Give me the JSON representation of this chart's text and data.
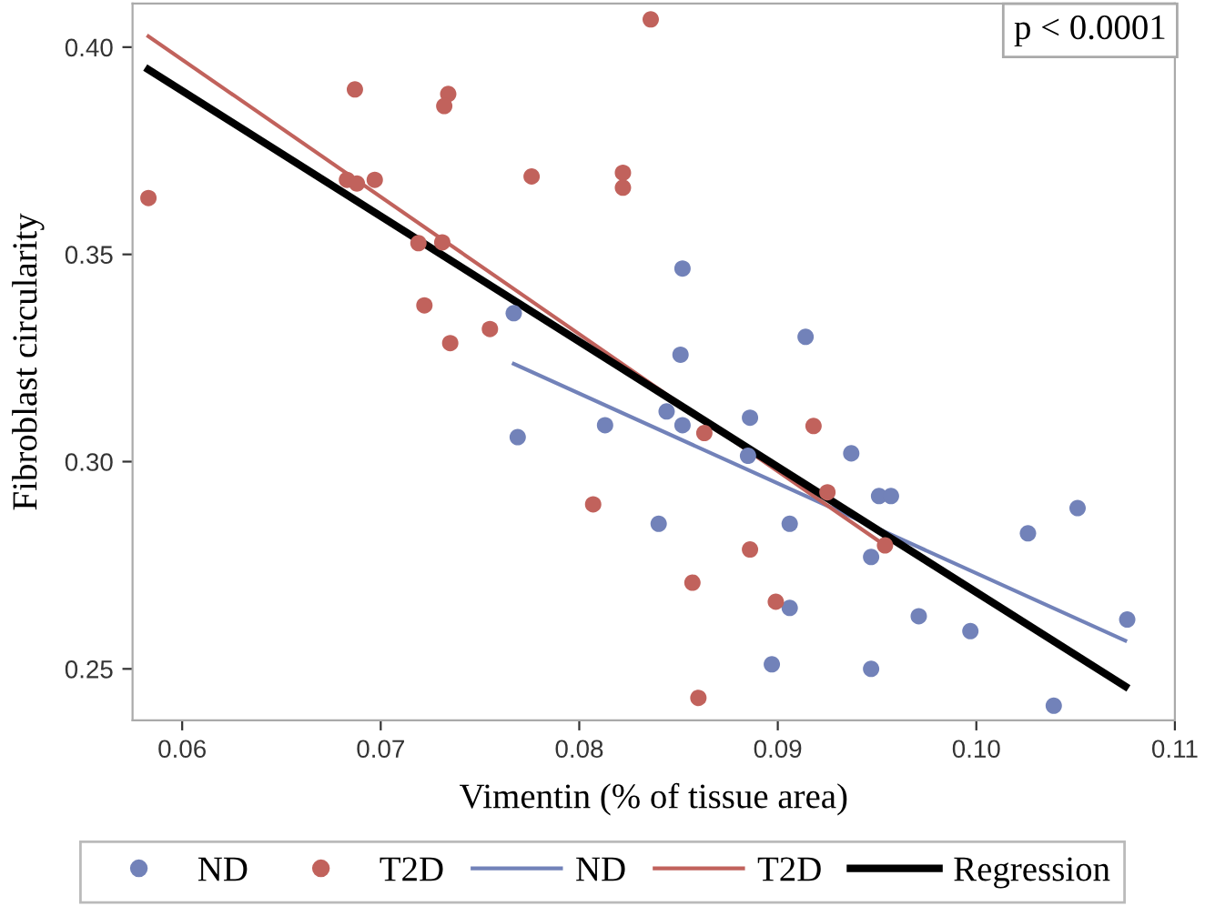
{
  "chart_data": {
    "type": "scatter",
    "xlabel": "Vimentin (% of tissue area)",
    "ylabel": "Fibroblast circularity",
    "annotations": [
      "p < 0.0001"
    ],
    "xlim": [
      0.0575,
      0.11
    ],
    "ylim": [
      0.2376,
      0.4105
    ],
    "xticks": [
      {
        "value": 0.06,
        "label": "0.06"
      },
      {
        "value": 0.07,
        "label": "0.07"
      },
      {
        "value": 0.08,
        "label": "0.08"
      },
      {
        "value": 0.09,
        "label": "0.09"
      },
      {
        "value": 0.1,
        "label": "0.10"
      },
      {
        "value": 0.11,
        "label": "0.11"
      }
    ],
    "yticks": [
      {
        "value": 0.25,
        "label": "0.25"
      },
      {
        "value": 0.3,
        "label": "0.30"
      },
      {
        "value": 0.35,
        "label": "0.35"
      },
      {
        "value": 0.4,
        "label": "0.40"
      }
    ],
    "grid": false,
    "legend": "bottom",
    "series": [
      {
        "name": "ND",
        "marker": "circle",
        "color": "#7282b9",
        "x": [
          0.0767,
          0.0769,
          0.0813,
          0.0852,
          0.0851,
          0.0914,
          0.0844,
          0.0852,
          0.0886,
          0.0937,
          0.0885,
          0.0951,
          0.0957,
          0.084,
          0.0906,
          0.0947,
          0.1051,
          0.1026,
          0.0971,
          0.0997,
          0.1076,
          0.0906,
          0.0897,
          0.0947,
          0.1039
        ],
        "values": [
          0.3358,
          0.3059,
          0.3088,
          0.3466,
          0.3258,
          0.3301,
          0.3121,
          0.3088,
          0.3106,
          0.302,
          0.3014,
          0.2917,
          0.2917,
          0.285,
          0.285,
          0.277,
          0.2888,
          0.2827,
          0.2627,
          0.2591,
          0.2619,
          0.2647,
          0.2511,
          0.25,
          0.2411
        ]
      },
      {
        "name": "T2D",
        "marker": "circle",
        "color": "#c1625c",
        "x": [
          0.0583,
          0.0687,
          0.0734,
          0.0732,
          0.0683,
          0.0688,
          0.0697,
          0.0776,
          0.0719,
          0.0731,
          0.0722,
          0.0735,
          0.0755,
          0.0836,
          0.0822,
          0.0822,
          0.0863,
          0.0918,
          0.0807,
          0.0925,
          0.0954,
          0.0886,
          0.0857,
          0.0899,
          0.086
        ],
        "values": [
          0.3636,
          0.3898,
          0.3887,
          0.3858,
          0.368,
          0.3671,
          0.368,
          0.3688,
          0.3527,
          0.3529,
          0.3377,
          0.3286,
          0.332,
          0.4067,
          0.3697,
          0.3661,
          0.3069,
          0.3086,
          0.2897,
          0.2926,
          0.2798,
          0.2788,
          0.2708,
          0.2662,
          0.243
        ]
      },
      {
        "name": "ND",
        "type": "line",
        "marker": "none",
        "line_style": "solid",
        "color": "#7282b9",
        "x": [
          0.0767,
          0.1075
        ],
        "values": [
          0.3236,
          0.2568
        ]
      },
      {
        "name": "T2D",
        "type": "line",
        "marker": "none",
        "line_style": "solid",
        "color": "#c1625c",
        "x": [
          0.0583,
          0.0954
        ],
        "values": [
          0.4026,
          0.2798
        ]
      },
      {
        "name": "Regression",
        "type": "line",
        "marker": "none",
        "line_style": "solid",
        "color": "#000000",
        "x": [
          0.0583,
          0.1075
        ],
        "values": [
          0.3946,
          0.2458
        ]
      }
    ]
  }
}
